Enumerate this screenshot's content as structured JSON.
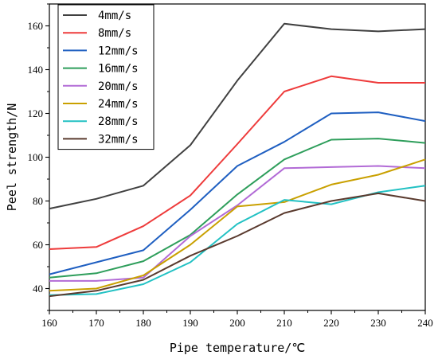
{
  "chart_data": {
    "type": "line",
    "title": "",
    "xlabel": "Pipe temperature/℃",
    "ylabel": "Peel strength/N",
    "x": [
      160,
      170,
      180,
      190,
      200,
      210,
      220,
      230,
      240
    ],
    "xlim": [
      160,
      240
    ],
    "ylim": [
      30,
      170
    ],
    "xticks": [
      160,
      170,
      180,
      190,
      200,
      210,
      220,
      230,
      240
    ],
    "yticks": [
      40,
      60,
      80,
      100,
      120,
      140,
      160
    ],
    "grid": false,
    "legend_position": "top-left",
    "series": [
      {
        "name": "4mm/s",
        "color": "#404040",
        "values": [
          76.5,
          81,
          87,
          105.5,
          135,
          161,
          158.5,
          157.5,
          158.5
        ]
      },
      {
        "name": "8mm/s",
        "color": "#ee3b3b",
        "values": [
          58,
          59,
          68.5,
          82.5,
          106,
          130,
          137,
          134,
          134
        ]
      },
      {
        "name": "12mm/s",
        "color": "#1f5fc1",
        "values": [
          46.5,
          52,
          57.5,
          76,
          96,
          107,
          120,
          120.5,
          116.5
        ]
      },
      {
        "name": "16mm/s",
        "color": "#2e9e5b",
        "values": [
          45,
          47,
          52.5,
          64.5,
          83,
          99,
          108,
          108.5,
          106.5
        ]
      },
      {
        "name": "20mm/s",
        "color": "#b26bd6",
        "values": [
          43.5,
          43.5,
          45,
          64,
          78,
          95,
          95.5,
          96,
          95
        ]
      },
      {
        "name": "24mm/s",
        "color": "#c9a000",
        "values": [
          39,
          40,
          46,
          60,
          77.5,
          79.5,
          87.5,
          92,
          99
        ]
      },
      {
        "name": "28mm/s",
        "color": "#22c1c3",
        "values": [
          37,
          37.5,
          42,
          52,
          69.5,
          80.5,
          78.5,
          84,
          87
        ]
      },
      {
        "name": "32mm/s",
        "color": "#5a3a2e",
        "values": [
          36.5,
          39,
          44,
          55,
          64,
          74.5,
          80,
          83.5,
          80
        ]
      }
    ]
  }
}
